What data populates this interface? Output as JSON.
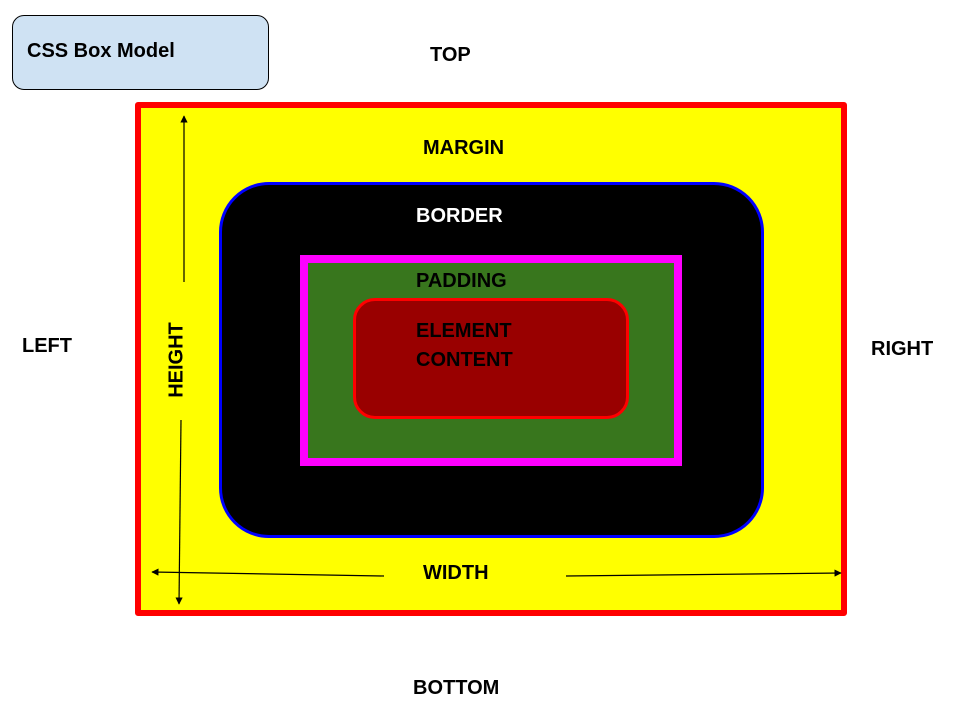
{
  "title": "CSS Box Model",
  "sides": {
    "top": "TOP",
    "bottom": "BOTTOM",
    "left": "LEFT",
    "right": "RIGHT"
  },
  "layers": {
    "margin": "MARGIN",
    "border": "BORDER",
    "padding": "PADDING",
    "content_line1": "ELEMENT",
    "content_line2": "CONTENT"
  },
  "dimensions": {
    "width": "WIDTH",
    "height": "HEIGHT"
  },
  "colors": {
    "title_fill": "#cfe2f3",
    "margin_fill": "#ffff00",
    "margin_outline": "#ff0000",
    "border_fill": "#000000",
    "border_outline": "#0000ff",
    "padding_fill": "#38761d",
    "padding_outline": "#ff00ff",
    "content_fill": "#990000",
    "content_outline": "#ff0000",
    "content_text": "#000000",
    "border_text": "#ffffff"
  }
}
